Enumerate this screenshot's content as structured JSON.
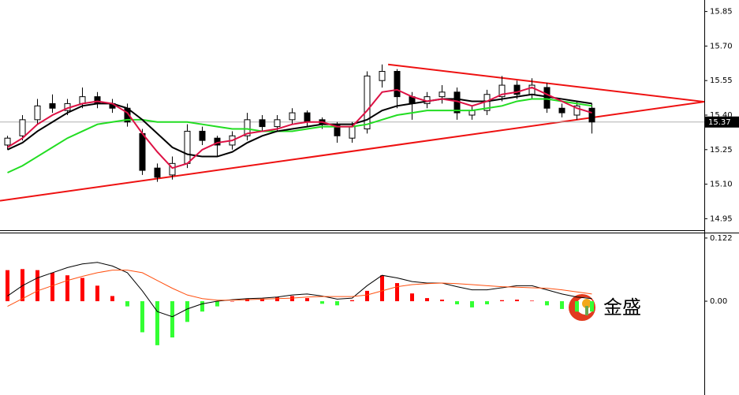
{
  "chart_data": [
    {
      "type": "candlestick",
      "x": [
        0,
        1,
        2,
        3,
        4,
        5,
        6,
        7,
        8,
        9,
        10,
        11,
        12,
        13,
        14,
        15,
        16,
        17,
        18,
        19,
        20,
        21,
        22,
        23,
        24,
        25,
        26,
        27,
        28,
        29,
        30,
        31,
        32,
        33,
        34,
        35,
        36,
        37,
        38,
        39
      ],
      "open": [
        15.27,
        15.31,
        15.38,
        15.45,
        15.42,
        15.45,
        15.48,
        15.45,
        15.43,
        15.32,
        15.17,
        15.14,
        15.19,
        15.33,
        15.3,
        15.27,
        15.31,
        15.38,
        15.35,
        15.38,
        15.41,
        15.38,
        15.36,
        15.3,
        15.34,
        15.55,
        15.59,
        15.48,
        15.45,
        15.48,
        15.5,
        15.4,
        15.42,
        15.48,
        15.53,
        15.49,
        15.52,
        15.43,
        15.4,
        15.43
      ],
      "high": [
        15.31,
        15.4,
        15.47,
        15.49,
        15.47,
        15.52,
        15.5,
        15.47,
        15.45,
        15.34,
        15.19,
        15.22,
        15.36,
        15.35,
        15.31,
        15.33,
        15.41,
        15.4,
        15.4,
        15.43,
        15.42,
        15.39,
        15.37,
        15.37,
        15.59,
        15.62,
        15.6,
        15.5,
        15.5,
        15.53,
        15.52,
        15.44,
        15.51,
        15.57,
        15.55,
        15.56,
        15.54,
        15.45,
        15.46,
        15.45
      ],
      "low": [
        15.25,
        15.29,
        15.36,
        15.41,
        15.4,
        15.43,
        15.43,
        15.41,
        15.35,
        15.14,
        15.11,
        15.12,
        15.17,
        15.27,
        15.22,
        15.25,
        15.29,
        15.33,
        15.33,
        15.36,
        15.35,
        15.34,
        15.28,
        15.28,
        15.32,
        15.52,
        15.43,
        15.38,
        15.43,
        15.45,
        15.38,
        15.38,
        15.4,
        15.46,
        15.47,
        15.47,
        15.41,
        15.39,
        15.38,
        15.32
      ],
      "close": [
        15.3,
        15.38,
        15.44,
        15.43,
        15.45,
        15.48,
        15.45,
        15.43,
        15.37,
        15.16,
        15.13,
        15.19,
        15.33,
        15.29,
        15.27,
        15.31,
        15.38,
        15.35,
        15.38,
        15.41,
        15.37,
        15.36,
        15.31,
        15.35,
        15.57,
        15.59,
        15.48,
        15.45,
        15.48,
        15.5,
        15.41,
        15.42,
        15.49,
        15.53,
        15.49,
        15.53,
        15.43,
        15.41,
        15.44,
        15.37
      ],
      "up_color": "#ffffff",
      "down_color": "#000000",
      "series": [
        {
          "color": "#22dd22",
          "values": [
            15.15,
            15.18,
            15.22,
            15.26,
            15.3,
            15.33,
            15.36,
            15.37,
            15.38,
            15.38,
            15.37,
            15.37,
            15.37,
            15.36,
            15.35,
            15.34,
            15.34,
            15.33,
            15.33,
            15.33,
            15.34,
            15.35,
            15.35,
            15.35,
            15.36,
            15.38,
            15.4,
            15.41,
            15.42,
            15.42,
            15.42,
            15.42,
            15.43,
            15.44,
            15.46,
            15.47,
            15.47,
            15.46,
            15.45,
            15.44
          ]
        },
        {
          "color": "#000000",
          "values": [
            15.25,
            15.28,
            15.33,
            15.37,
            15.41,
            15.44,
            15.45,
            15.45,
            15.43,
            15.38,
            15.32,
            15.26,
            15.23,
            15.22,
            15.22,
            15.24,
            15.28,
            15.31,
            15.33,
            15.34,
            15.35,
            15.36,
            15.36,
            15.36,
            15.38,
            15.42,
            15.44,
            15.45,
            15.46,
            15.47,
            15.47,
            15.46,
            15.46,
            15.47,
            15.48,
            15.49,
            15.48,
            15.47,
            15.46,
            15.45
          ]
        },
        {
          "color": "#dd1144",
          "values": [
            15.26,
            15.3,
            15.36,
            15.4,
            15.43,
            15.45,
            15.46,
            15.45,
            15.41,
            15.32,
            15.24,
            15.17,
            15.19,
            15.25,
            15.28,
            15.29,
            15.32,
            15.33,
            15.34,
            15.36,
            15.37,
            15.37,
            15.35,
            15.35,
            15.42,
            15.5,
            15.51,
            15.48,
            15.46,
            15.47,
            15.46,
            15.44,
            15.46,
            15.49,
            15.5,
            15.52,
            15.49,
            15.46,
            15.43,
            15.41
          ]
        }
      ],
      "trendlines": [
        {
          "color": "#ee1111",
          "x": [
            25.4,
            46.5
          ],
          "y": [
            15.62,
            15.458
          ]
        },
        {
          "color": "#ee1111",
          "x": [
            -0.5,
            46.5
          ],
          "y": [
            15.028,
            15.458
          ]
        }
      ],
      "last_price": 15.37,
      "xlim": [
        -0.5,
        46.5
      ],
      "ylim": [
        14.9,
        15.9
      ],
      "yticks": [
        14.95,
        {
          "value": 15.1,
          "label": "15.10"
        },
        15.25,
        {
          "value": 15.4,
          "label": "15.40"
        },
        15.55,
        {
          "value": 15.7,
          "label": "15.70"
        },
        15.85
      ]
    },
    {
      "type": "macd",
      "x": [
        0,
        1,
        2,
        3,
        4,
        5,
        6,
        7,
        8,
        9,
        10,
        11,
        12,
        13,
        14,
        15,
        16,
        17,
        18,
        19,
        20,
        21,
        22,
        23,
        24,
        25,
        26,
        27,
        28,
        29,
        30,
        31,
        32,
        33,
        34,
        35,
        36,
        37,
        38,
        39
      ],
      "histogram": {
        "color": "#ff0000",
        "negative_color": "#33ff33",
        "values": [
          0.06,
          0.062,
          0.06,
          0.055,
          0.05,
          0.045,
          0.03,
          0.01,
          -0.01,
          -0.06,
          -0.085,
          -0.07,
          -0.04,
          -0.02,
          -0.01,
          0.0,
          0.005,
          0.005,
          0.008,
          0.01,
          0.006,
          -0.005,
          -0.008,
          0.002,
          0.02,
          0.05,
          0.035,
          0.015,
          0.006,
          0.003,
          -0.006,
          -0.012,
          -0.006,
          0.002,
          0.003,
          0.001,
          -0.008,
          -0.015,
          -0.02,
          -0.02
        ]
      },
      "series": [
        {
          "color": "#000000",
          "values": [
            0.01,
            0.03,
            0.045,
            0.055,
            0.065,
            0.072,
            0.075,
            0.068,
            0.055,
            0.02,
            -0.02,
            -0.03,
            -0.015,
            -0.005,
            0.0,
            0.003,
            0.005,
            0.006,
            0.008,
            0.012,
            0.014,
            0.01,
            0.004,
            0.006,
            0.03,
            0.05,
            0.045,
            0.038,
            0.035,
            0.035,
            0.028,
            0.022,
            0.022,
            0.026,
            0.03,
            0.03,
            0.022,
            0.014,
            0.008,
            0.005
          ]
        },
        {
          "color": "#ff5010",
          "values": [
            -0.01,
            0.005,
            0.02,
            0.03,
            0.04,
            0.048,
            0.055,
            0.06,
            0.06,
            0.055,
            0.04,
            0.025,
            0.012,
            0.005,
            0.002,
            0.002,
            0.003,
            0.004,
            0.005,
            0.006,
            0.008,
            0.009,
            0.009,
            0.009,
            0.012,
            0.02,
            0.028,
            0.032,
            0.034,
            0.035,
            0.034,
            0.032,
            0.03,
            0.028,
            0.027,
            0.026,
            0.025,
            0.022,
            0.018,
            0.014
          ]
        }
      ],
      "xlim": [
        -0.5,
        46.5
      ],
      "ylim": [
        -0.172,
        0.131
      ],
      "yticks": [
        {
          "value": 0,
          "label": "0.00"
        },
        0.122
      ]
    }
  ],
  "watermark": "金盛"
}
